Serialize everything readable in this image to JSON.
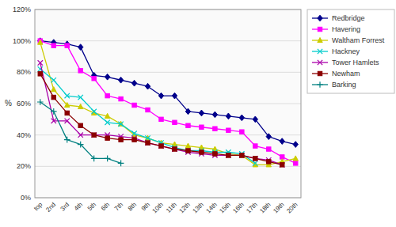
{
  "chart_data": {
    "type": "line",
    "y_label": "%",
    "categories": [
      "top",
      "2nd",
      "3rd",
      "4th",
      "5th",
      "6th",
      "7th",
      "8th",
      "9th",
      "10th",
      "11th",
      "12th",
      "13th",
      "14th",
      "15th",
      "16th",
      "17th",
      "18th",
      "19th",
      "20th"
    ],
    "series": [
      {
        "name": "Redbridge",
        "color": "#00008B",
        "marker": "diamond",
        "values": [
          100,
          99,
          98,
          96,
          78,
          77,
          75,
          73,
          71,
          65,
          65,
          55,
          54,
          53,
          52,
          51,
          50,
          39,
          36,
          34
        ]
      },
      {
        "name": "Havering",
        "color": "#FF00FF",
        "marker": "square",
        "values": [
          100,
          97,
          97,
          81,
          76,
          65,
          63,
          59,
          56,
          50,
          48,
          46,
          45,
          44,
          43,
          42,
          33,
          31,
          26,
          22
        ]
      },
      {
        "name": "Waltham Forrest",
        "color": "#CCCC00",
        "marker": "triangle",
        "values": [
          99,
          69,
          59,
          58,
          54,
          52,
          47,
          40,
          38,
          35,
          34,
          33,
          32,
          31,
          28,
          27,
          21,
          21,
          23,
          25
        ]
      },
      {
        "name": "Hackney",
        "color": "#00CCCC",
        "marker": "x",
        "values": [
          82,
          75,
          65,
          64,
          55,
          48,
          47,
          41,
          38,
          35,
          32,
          30,
          30,
          29,
          29,
          28,
          22,
          null,
          null,
          null
        ]
      },
      {
        "name": "Tower Hamlets",
        "color": "#AA00AA",
        "marker": "x",
        "values": [
          86,
          49,
          49,
          40,
          40,
          40,
          39,
          38,
          35,
          33,
          31,
          29,
          28,
          27,
          27,
          27,
          25,
          24,
          21,
          null
        ]
      },
      {
        "name": "Newham",
        "color": "#8B0000",
        "marker": "square",
        "values": [
          79,
          64,
          54,
          46,
          40,
          38,
          37,
          37,
          35,
          33,
          31,
          30,
          29,
          28,
          27,
          27,
          25,
          23,
          21,
          null
        ]
      },
      {
        "name": "Barking",
        "color": "#008080",
        "marker": "plus",
        "values": [
          61,
          55,
          37,
          34,
          25,
          25,
          22,
          null,
          null,
          null,
          null,
          null,
          null,
          null,
          null,
          null,
          null,
          null,
          null,
          null
        ]
      }
    ],
    "ylim": [
      0,
      120
    ],
    "yticks": [
      {
        "value": 0,
        "label": "0%"
      },
      {
        "value": 20,
        "label": "20%"
      },
      {
        "value": 40,
        "label": "40%"
      },
      {
        "value": 60,
        "label": "60%"
      },
      {
        "value": 80,
        "label": "80%"
      },
      {
        "value": 100,
        "label": "100%"
      },
      {
        "value": 120,
        "label": "120%"
      }
    ],
    "grid": true,
    "legend": "right"
  }
}
